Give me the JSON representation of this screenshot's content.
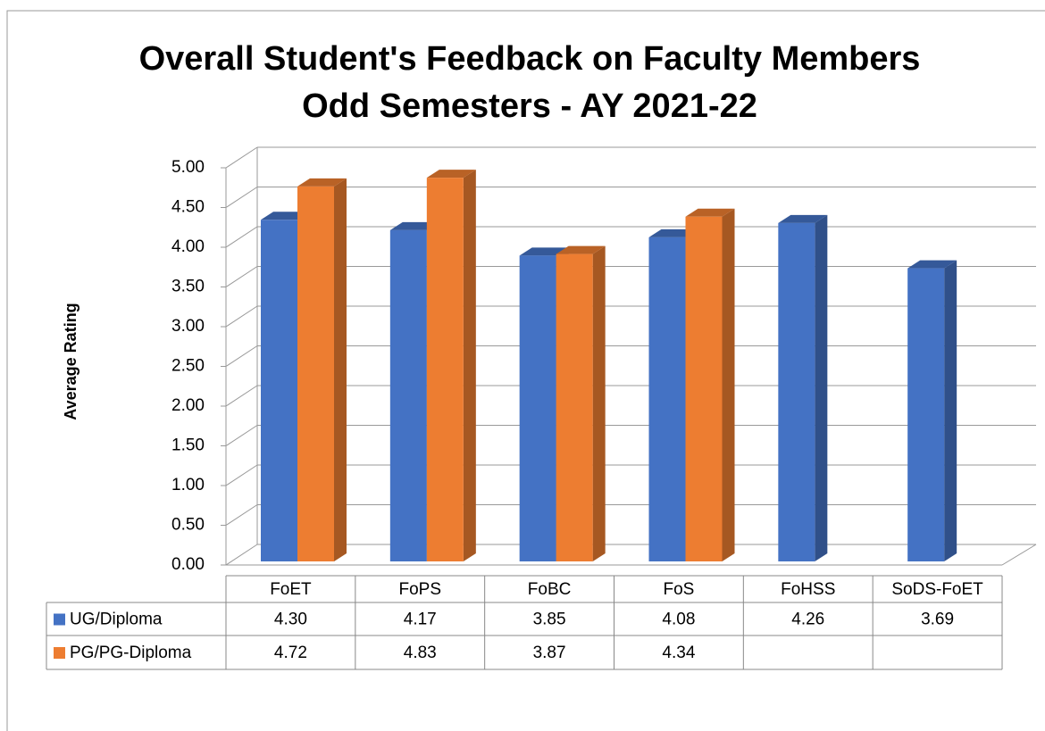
{
  "chart_data": {
    "type": "bar3d",
    "title": [
      "Overall Student's Feedback on Faculty Members",
      "Odd Semesters - AY 2021-22"
    ],
    "y_label": "Average Rating",
    "categories": [
      "FoET",
      "FoPS",
      "FoBC",
      "FoS",
      "FoHSS",
      "SoDS-FoET"
    ],
    "series": [
      {
        "name": "UG/Diploma",
        "color": "#4472c4",
        "values": [
          4.3,
          4.17,
          3.85,
          4.08,
          4.26,
          3.69
        ],
        "value_labels": [
          "4.30",
          "4.17",
          "3.85",
          "4.08",
          "4.26",
          "3.69"
        ]
      },
      {
        "name": "PG/PG-Diploma",
        "color": "#ed7d31",
        "values": [
          4.72,
          4.83,
          3.87,
          4.34,
          null,
          null
        ],
        "value_labels": [
          "4.72",
          "4.83",
          "3.87",
          "4.34",
          null,
          null
        ]
      }
    ],
    "ylim": [
      0,
      5
    ],
    "yticks": [
      {
        "value": 0,
        "label": "0.00"
      },
      {
        "value": 0.5,
        "label": "0.50"
      },
      {
        "value": 1,
        "label": "1.00"
      },
      {
        "value": 1.5,
        "label": "1.50"
      },
      {
        "value": 2,
        "label": "2.00"
      },
      {
        "value": 2.5,
        "label": "2.50"
      },
      {
        "value": 3,
        "label": "3.00"
      },
      {
        "value": 3.5,
        "label": "3.50"
      },
      {
        "value": 4,
        "label": "4.00"
      },
      {
        "value": 4.5,
        "label": "4.50"
      },
      {
        "value": 5,
        "label": "5.00"
      }
    ],
    "grid": true,
    "data_table": true
  }
}
